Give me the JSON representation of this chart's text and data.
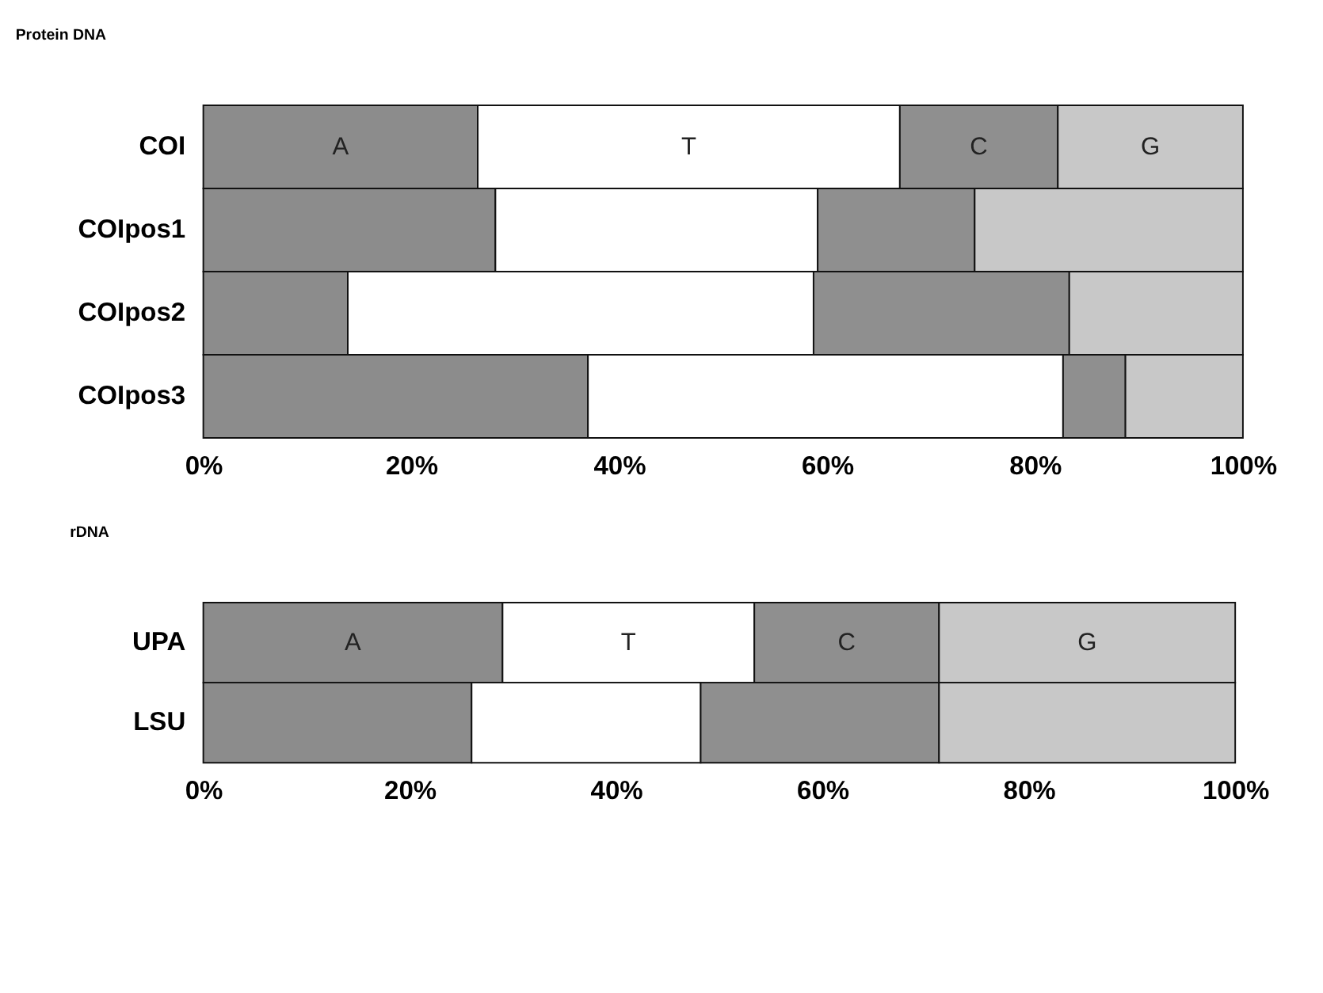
{
  "chart_data": [
    {
      "type": "bar",
      "title": "Protein DNA",
      "orientation": "horizontal",
      "stacked": true,
      "grid": false,
      "categories": [
        "COI",
        "COIpos1",
        "COIpos2",
        "COIpos3"
      ],
      "series": [
        {
          "name": "A",
          "color": "#8c8c8c",
          "values": [
            26.4,
            28.1,
            13.9,
            37.0
          ]
        },
        {
          "name": "T",
          "color": "#ffffff",
          "values": [
            40.6,
            31.0,
            44.8,
            45.7
          ]
        },
        {
          "name": "C",
          "color": "#8f8f8f",
          "values": [
            15.2,
            15.1,
            24.6,
            6.0
          ]
        },
        {
          "name": "G",
          "color": "#c8c8c8",
          "values": [
            17.8,
            25.8,
            16.7,
            11.3
          ]
        }
      ],
      "xlim": [
        0,
        100
      ],
      "xticks": [
        {
          "value": 0,
          "label": "0%"
        },
        {
          "value": 20,
          "label": "20%"
        },
        {
          "value": 40,
          "label": "40%"
        },
        {
          "value": 60,
          "label": "60%"
        },
        {
          "value": 80,
          "label": "80%"
        },
        {
          "value": 100,
          "label": "100%"
        }
      ]
    },
    {
      "type": "bar",
      "title": "rDNA",
      "orientation": "horizontal",
      "stacked": true,
      "grid": false,
      "categories": [
        "UPA",
        "LSU"
      ],
      "series": [
        {
          "name": "A",
          "color": "#8c8c8c",
          "values": [
            29.0,
            26.0
          ]
        },
        {
          "name": "T",
          "color": "#ffffff",
          "values": [
            24.4,
            22.2
          ]
        },
        {
          "name": "C",
          "color": "#9c9c9c",
          "values": [
            17.9,
            23.1
          ]
        },
        {
          "name": "G",
          "color": "#c8c8c8",
          "values": [
            28.7,
            28.7
          ]
        }
      ],
      "xlim": [
        0,
        100
      ],
      "xticks": [
        {
          "value": 0,
          "label": "0%"
        },
        {
          "value": 20,
          "label": "20%"
        },
        {
          "value": 40,
          "label": "40%"
        },
        {
          "value": 60,
          "label": "60%"
        },
        {
          "value": 80,
          "label": "80%"
        },
        {
          "value": 100,
          "label": "100%"
        }
      ]
    }
  ]
}
